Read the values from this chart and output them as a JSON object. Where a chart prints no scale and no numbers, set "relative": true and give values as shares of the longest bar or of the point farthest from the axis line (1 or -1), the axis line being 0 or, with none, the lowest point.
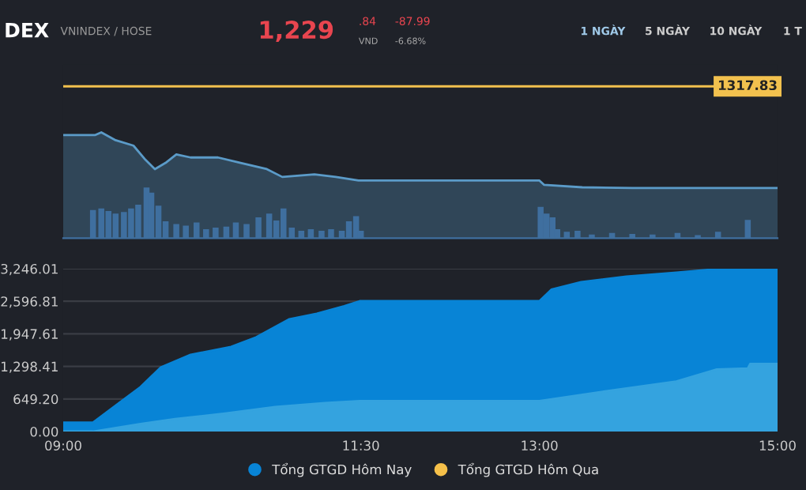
{
  "chart_data": [
    {
      "type": "area",
      "title": "DEX",
      "subtitle": "VNINDEX / HOSE",
      "relative": true,
      "xlim": [
        9,
        15
      ],
      "grid": false,
      "annotations": [
        "1,229",
        ".84",
        "VND",
        "-87.99",
        "-6.68%",
        "1 NGÀY",
        "5 NGÀY",
        "10 NGÀY",
        "1 T",
        "1317.83"
      ],
      "ref_lines": [
        {
          "axis": "y",
          "value": 1.435,
          "color": "#f2c14e"
        }
      ],
      "series": [
        {
          "type": "area",
          "color": "#5b9bc8",
          "x": [
            9.0,
            9.27,
            9.32,
            9.44,
            9.59,
            9.69,
            9.77,
            9.86,
            9.95,
            10.07,
            10.3,
            10.49,
            10.71,
            10.84,
            11.11,
            11.29,
            11.48,
            13.0,
            13.04,
            13.36,
            13.78,
            15.0
          ],
          "values": [
            0.975,
            0.975,
            1.0,
            0.926,
            0.875,
            0.742,
            0.653,
            0.712,
            0.792,
            0.763,
            0.763,
            0.712,
            0.653,
            0.579,
            0.604,
            0.579,
            0.545,
            0.545,
            0.504,
            0.481,
            0.475,
            0.475
          ]
        },
        {
          "type": "bar",
          "color": "#3f6f9f",
          "x": [
            9.25,
            9.32,
            9.38,
            9.44,
            9.51,
            9.57,
            9.63,
            9.7,
            9.74,
            9.8,
            9.86,
            9.95,
            10.03,
            10.12,
            10.2,
            10.28,
            10.37,
            10.45,
            10.54,
            10.64,
            10.73,
            10.79,
            10.85,
            10.92,
            11.0,
            11.08,
            11.17,
            11.25,
            11.34,
            11.4,
            11.46,
            11.5,
            13.01,
            13.06,
            13.11,
            13.15,
            13.23,
            13.32,
            13.44,
            13.61,
            13.78,
            13.95,
            14.16,
            14.33,
            14.5,
            14.75
          ],
          "values": [
            0.267,
            0.282,
            0.257,
            0.233,
            0.248,
            0.282,
            0.317,
            0.48,
            0.43,
            0.307,
            0.159,
            0.134,
            0.119,
            0.149,
            0.085,
            0.1,
            0.109,
            0.149,
            0.134,
            0.198,
            0.233,
            0.168,
            0.282,
            0.1,
            0.07,
            0.085,
            0.07,
            0.085,
            0.07,
            0.159,
            0.208,
            0.07,
            0.297,
            0.233,
            0.198,
            0.085,
            0.06,
            0.07,
            0.035,
            0.05,
            0.04,
            0.035,
            0.05,
            0.03,
            0.06,
            0.173
          ]
        }
      ]
    },
    {
      "type": "area",
      "xlim": [
        9,
        15
      ],
      "ylim": [
        0,
        3246.01
      ],
      "grid": "y",
      "legend": "bottom",
      "xticks": [
        {
          "value": 9,
          "label": "09:00"
        },
        {
          "value": 11.5,
          "label": "11:30"
        },
        {
          "value": 13,
          "label": "13:00"
        },
        {
          "value": 15,
          "label": "15:00"
        }
      ],
      "yticks": [
        {
          "value": 0,
          "label": "0.00"
        },
        {
          "value": 649.2,
          "label": "649.20"
        },
        {
          "value": 1298.41,
          "label": "1,298.41"
        },
        {
          "value": 1947.61,
          "label": "1,947.61"
        },
        {
          "value": 2596.81,
          "label": "2,596.81"
        },
        {
          "value": 3246.01,
          "label": "3,246.01"
        }
      ],
      "series": [
        {
          "name": "Tổng GTGD Hôm Nay",
          "color": "#0884d6",
          "x": [
            9.0,
            9.25,
            9.65,
            9.82,
            10.07,
            10.41,
            10.62,
            10.9,
            11.13,
            11.36,
            11.49,
            13.0,
            13.1,
            13.35,
            13.73,
            14.15,
            14.49,
            15.0
          ],
          "values": [
            180,
            180,
            890,
            1280,
            1530,
            1690,
            1880,
            2240,
            2350,
            2500,
            2600,
            2600,
            2830,
            2980,
            3090,
            3170,
            3240,
            3240
          ]
        },
        {
          "color": "#34a3df",
          "x": [
            9.0,
            9.25,
            9.65,
            9.94,
            10.36,
            10.78,
            11.2,
            11.49,
            13.0,
            13.52,
            14.15,
            14.49,
            14.75,
            14.77,
            15.0
          ],
          "values": [
            0,
            0,
            150,
            250,
            360,
            490,
            570,
            610,
            610,
            790,
            1000,
            1240,
            1260,
            1350,
            1350
          ]
        },
        {
          "name": "Tổng GTGD Hôm Qua",
          "color": "#f5c04a"
        }
      ]
    }
  ]
}
